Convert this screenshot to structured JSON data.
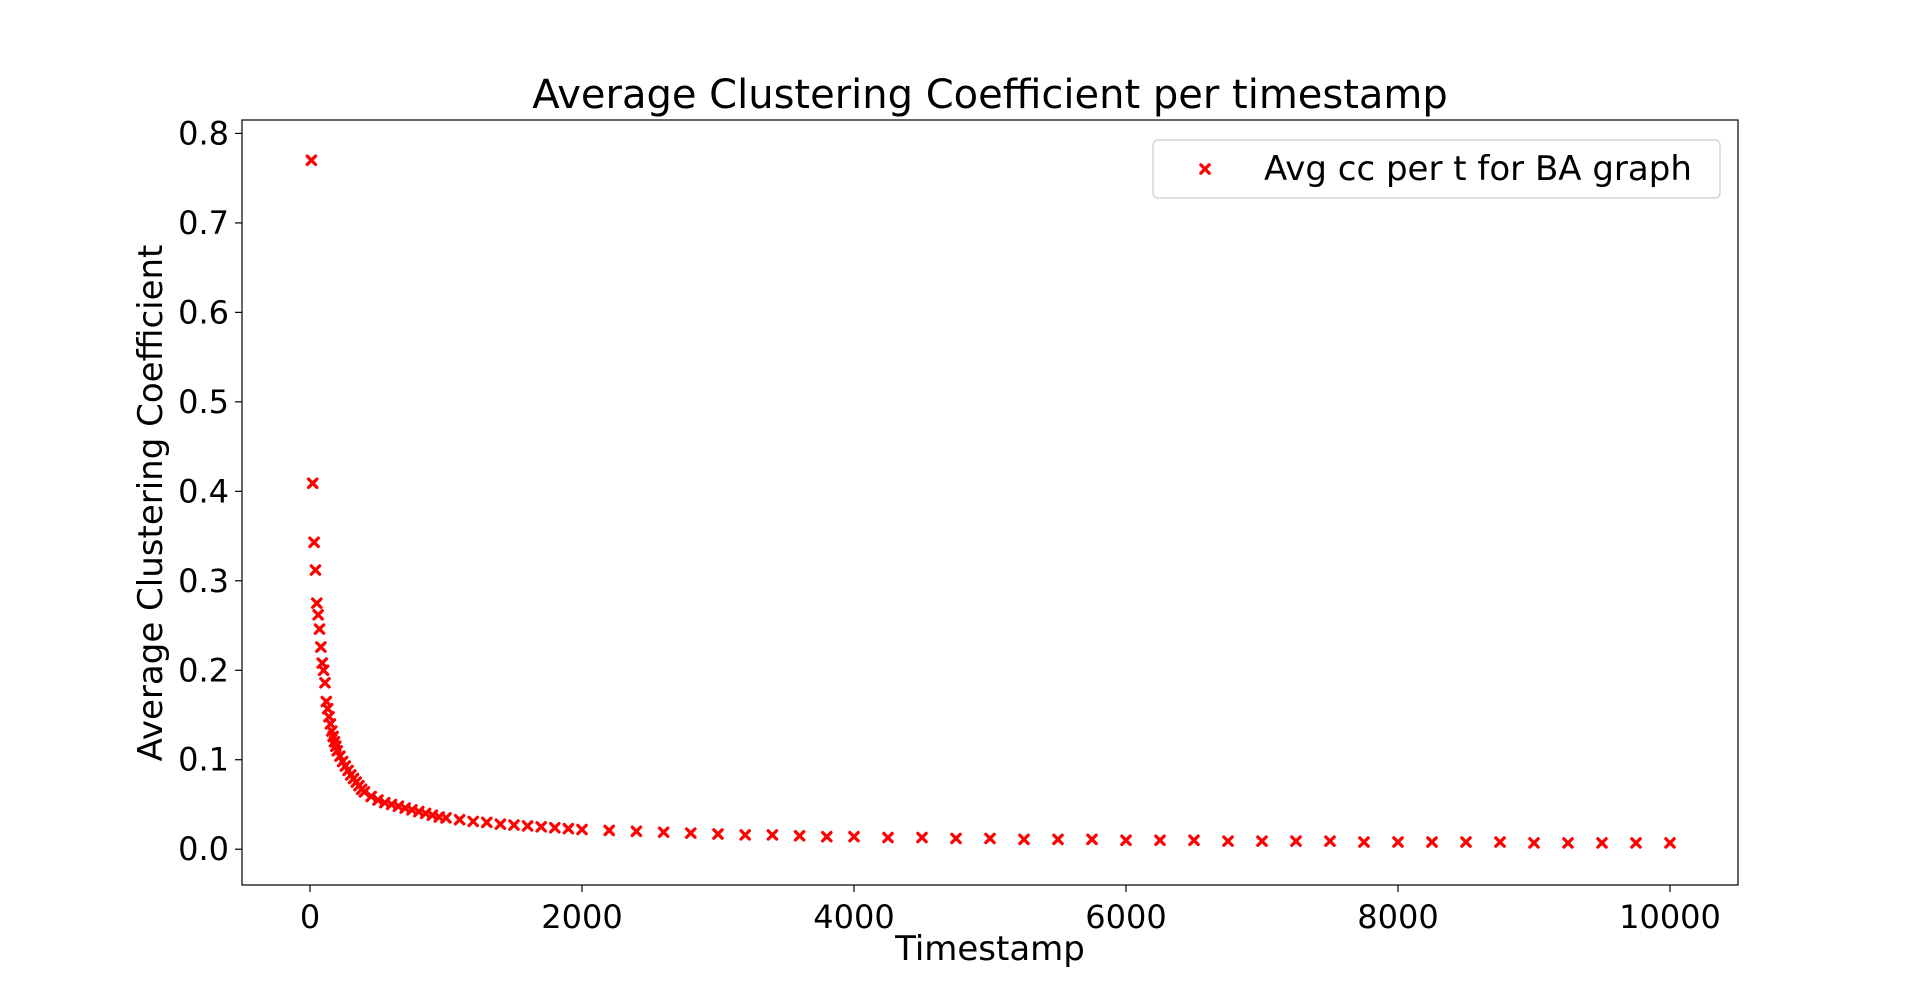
{
  "chart_data": {
    "type": "scatter",
    "title": "Average Clustering Coefficient per timestamp",
    "xlabel": "Timestamp",
    "ylabel": "Average Clustering Coefficient",
    "xlim": [
      -500,
      10500
    ],
    "ylim": [
      -0.04,
      0.815
    ],
    "xticks": [
      0,
      2000,
      4000,
      6000,
      8000,
      10000
    ],
    "xtick_labels": [
      "0",
      "2000",
      "4000",
      "6000",
      "8000",
      "10000"
    ],
    "yticks": [
      0.0,
      0.1,
      0.2,
      0.3,
      0.4,
      0.5,
      0.6,
      0.7,
      0.8
    ],
    "ytick_labels": [
      "0.0",
      "0.1",
      "0.2",
      "0.3",
      "0.4",
      "0.5",
      "0.6",
      "0.7",
      "0.8"
    ],
    "grid": false,
    "legend_position": "top-right",
    "marker": "x",
    "series": [
      {
        "name": "Avg cc per t for BA graph",
        "color": "#ff0000",
        "x": [
          10,
          20,
          30,
          40,
          50,
          60,
          70,
          80,
          90,
          100,
          110,
          120,
          130,
          140,
          150,
          160,
          170,
          180,
          190,
          200,
          220,
          240,
          260,
          280,
          300,
          320,
          340,
          360,
          380,
          400,
          450,
          500,
          550,
          600,
          650,
          700,
          750,
          800,
          850,
          900,
          950,
          1000,
          1100,
          1200,
          1300,
          1400,
          1500,
          1600,
          1700,
          1800,
          1900,
          2000,
          2200,
          2400,
          2600,
          2800,
          3000,
          3200,
          3400,
          3600,
          3800,
          4000,
          4250,
          4500,
          4750,
          5000,
          5250,
          5500,
          5750,
          6000,
          6250,
          6500,
          6750,
          7000,
          7250,
          7500,
          7750,
          8000,
          8250,
          8500,
          8750,
          9000,
          9250,
          9500,
          9750,
          10000
        ],
        "y": [
          0.77,
          0.409,
          0.343,
          0.312,
          0.275,
          0.262,
          0.246,
          0.226,
          0.208,
          0.2,
          0.186,
          0.165,
          0.157,
          0.148,
          0.14,
          0.132,
          0.126,
          0.12,
          0.115,
          0.11,
          0.104,
          0.098,
          0.093,
          0.088,
          0.083,
          0.079,
          0.075,
          0.071,
          0.067,
          0.064,
          0.059,
          0.055,
          0.052,
          0.05,
          0.048,
          0.046,
          0.044,
          0.042,
          0.04,
          0.038,
          0.036,
          0.035,
          0.033,
          0.031,
          0.03,
          0.028,
          0.027,
          0.026,
          0.025,
          0.024,
          0.023,
          0.022,
          0.021,
          0.02,
          0.019,
          0.018,
          0.017,
          0.016,
          0.016,
          0.015,
          0.014,
          0.014,
          0.013,
          0.013,
          0.012,
          0.012,
          0.011,
          0.011,
          0.011,
          0.01,
          0.01,
          0.01,
          0.009,
          0.009,
          0.009,
          0.009,
          0.008,
          0.008,
          0.008,
          0.008,
          0.008,
          0.007,
          0.007,
          0.007,
          0.007,
          0.007
        ]
      }
    ]
  }
}
